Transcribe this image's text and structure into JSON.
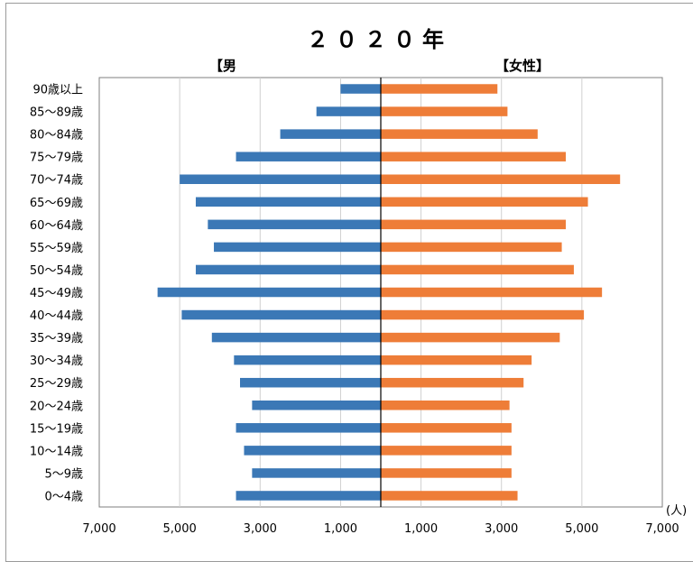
{
  "chart_data": {
    "type": "bar",
    "subtype": "population-pyramid",
    "title": "２０２０年",
    "left_label": "【男",
    "right_label": "【女性】",
    "unit_label": "(人)",
    "categories": [
      "0〜4歳",
      "5〜9歳",
      "10〜14歳",
      "15〜19歳",
      "20〜24歳",
      "25〜29歳",
      "30〜34歳",
      "35〜39歳",
      "40〜44歳",
      "45〜49歳",
      "50〜54歳",
      "55〜59歳",
      "60〜64歳",
      "65〜69歳",
      "70〜74歳",
      "75〜79歳",
      "80〜84歳",
      "85〜89歳",
      "90歳以上"
    ],
    "series": [
      {
        "name": "男",
        "color": "#3b78b6",
        "values": [
          3600,
          3200,
          3400,
          3600,
          3200,
          3500,
          3650,
          4200,
          4950,
          5550,
          4600,
          4150,
          4300,
          4600,
          5000,
          3600,
          2500,
          1600,
          1000
        ]
      },
      {
        "name": "女性",
        "color": "#ee7d38",
        "values": [
          3400,
          3250,
          3250,
          3250,
          3200,
          3550,
          3750,
          4450,
          5050,
          5500,
          4800,
          4500,
          4600,
          5150,
          5950,
          4600,
          3900,
          3150,
          2900
        ]
      }
    ],
    "xlim": [
      -7000,
      7000
    ],
    "x_ticks": [
      -7000,
      -5000,
      -3000,
      -1000,
      1000,
      3000,
      5000,
      7000
    ],
    "x_tick_labels": [
      "7,000",
      "5,000",
      "3,000",
      "1,000",
      "1,000",
      "3,000",
      "5,000",
      "7,000"
    ],
    "grid": true,
    "orientation": "horizontal"
  }
}
